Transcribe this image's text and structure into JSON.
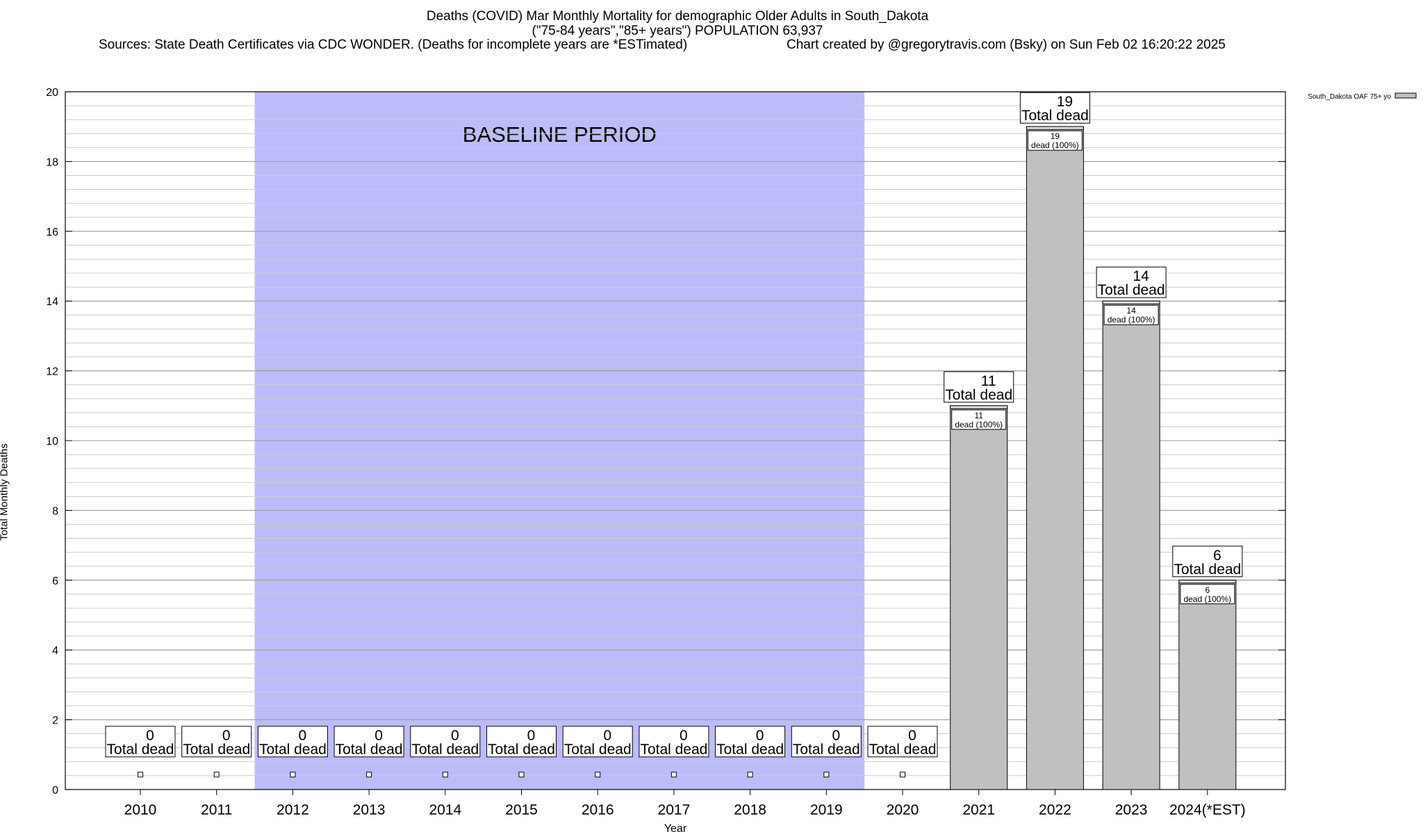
{
  "chart_data": {
    "type": "bar",
    "title": "Deaths (COVID) Mar Monthly Mortality for demographic Older Adults in South_Dakota",
    "subtitle": "(\"75-84 years\",\"85+ years\") POPULATION 63,937",
    "sources": "Sources: State Death Certificates via CDC WONDER. (Deaths for incomplete years are *ESTimated)",
    "credit": "Chart created by @gregorytravis.com (Bsky) on Sun Feb 02 16:20:22 2025",
    "xlabel": "Year",
    "ylabel": "Total Monthly Deaths",
    "ylim": [
      0,
      20
    ],
    "yticks": [
      0,
      2,
      4,
      6,
      8,
      10,
      12,
      14,
      16,
      18,
      20
    ],
    "grid": true,
    "categories": [
      "2010",
      "2011",
      "2012",
      "2013",
      "2014",
      "2015",
      "2016",
      "2017",
      "2018",
      "2019",
      "2020",
      "2021",
      "2022",
      "2023",
      "2024(*EST)"
    ],
    "series": [
      {
        "name": "South_Dakota OAF 75+ yo",
        "color": "#c0c0c0",
        "values": [
          0,
          0,
          0,
          0,
          0,
          0,
          0,
          0,
          0,
          0,
          0,
          11,
          19,
          14,
          6
        ]
      }
    ],
    "total_label": "Total dead",
    "inner_labels": [
      "",
      "",
      "",
      "",
      "",
      "",
      "",
      "",
      "",
      "",
      "",
      "dead (100%)",
      "dead (100%)",
      "dead (100%)",
      "dead (100%)"
    ],
    "baseline": {
      "label": "BASELINE PERIOD",
      "from": "2012",
      "to": "2019",
      "color": "#bcbcfa"
    },
    "legend_position": "top-right"
  }
}
